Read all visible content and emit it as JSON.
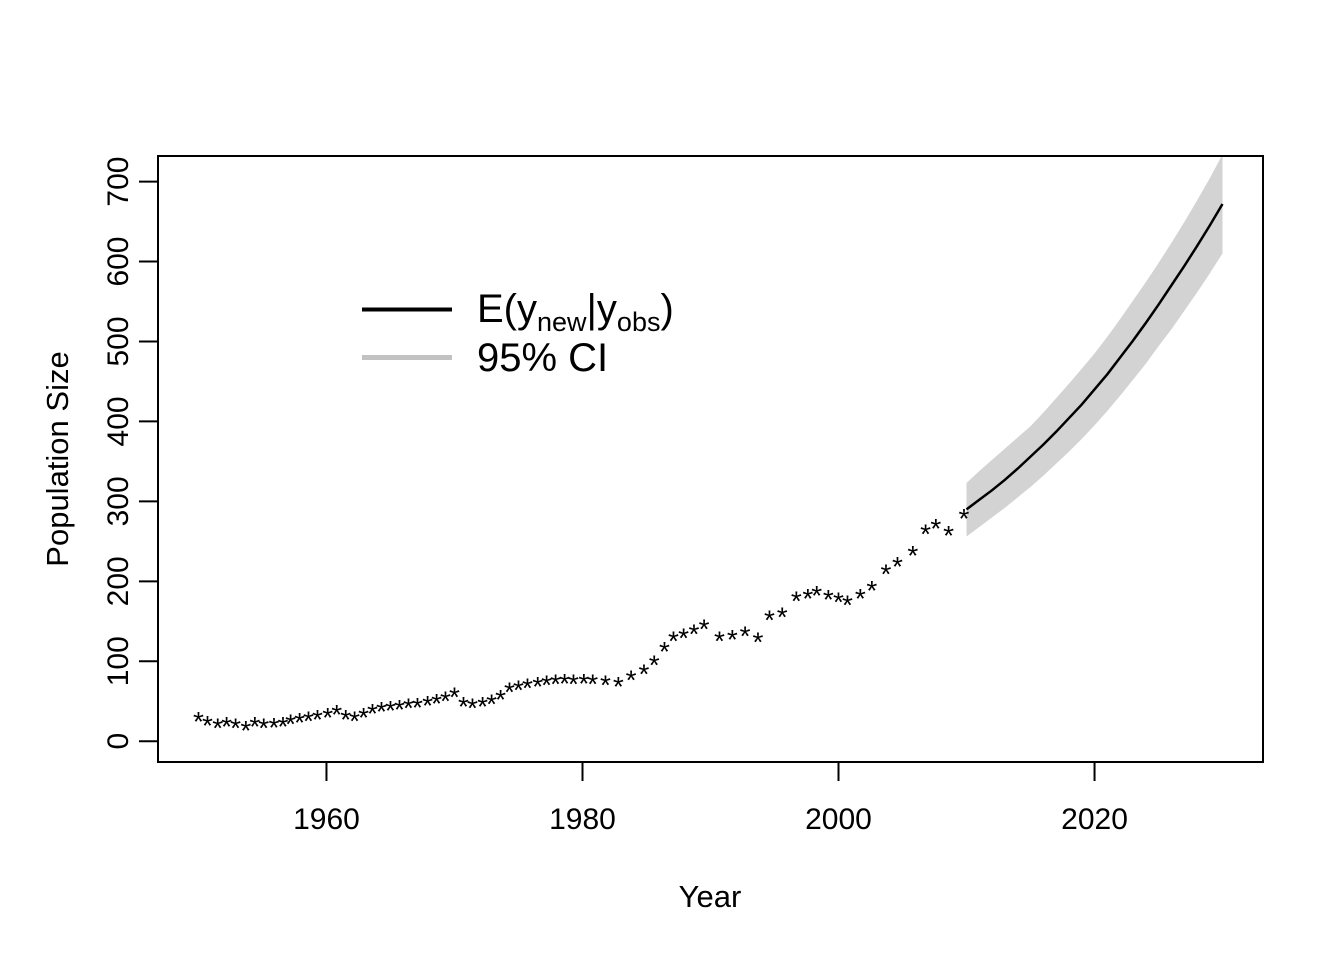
{
  "figure": {
    "background": "#ffffff",
    "border_color": "#000000"
  },
  "chart_data": {
    "type": "scatter",
    "title": "",
    "xlabel": "Year",
    "ylabel": "Population Size",
    "xlim": [
      1946.84,
      2033.16
    ],
    "ylim": [
      -26,
      732
    ],
    "x_ticks": [
      1960,
      1980,
      2000,
      2020
    ],
    "y_ticks": [
      0,
      100,
      200,
      300,
      400,
      500,
      600,
      700
    ],
    "y_tick_labels": [
      "0",
      "100",
      "200",
      "300",
      "400",
      "500",
      "600",
      "700"
    ],
    "grid": false,
    "marker": "*",
    "marker_color": "#000000",
    "observed_points": [
      [
        1950.0,
        30
      ],
      [
        1950.7,
        25
      ],
      [
        1951.5,
        22
      ],
      [
        1952.2,
        24
      ],
      [
        1952.9,
        22
      ],
      [
        1953.7,
        19
      ],
      [
        1954.4,
        24
      ],
      [
        1955.1,
        22
      ],
      [
        1955.9,
        23
      ],
      [
        1956.6,
        24
      ],
      [
        1957.2,
        27
      ],
      [
        1957.9,
        29
      ],
      [
        1958.6,
        31
      ],
      [
        1959.3,
        33
      ],
      [
        1960.1,
        35
      ],
      [
        1960.8,
        39
      ],
      [
        1961.5,
        33
      ],
      [
        1962.2,
        31
      ],
      [
        1962.9,
        35
      ],
      [
        1963.6,
        40
      ],
      [
        1964.3,
        43
      ],
      [
        1965.0,
        44
      ],
      [
        1965.7,
        45
      ],
      [
        1966.4,
        47
      ],
      [
        1967.1,
        48
      ],
      [
        1967.9,
        50
      ],
      [
        1968.6,
        53
      ],
      [
        1969.3,
        56
      ],
      [
        1970.0,
        61
      ],
      [
        1970.7,
        49
      ],
      [
        1971.4,
        47
      ],
      [
        1972.2,
        49
      ],
      [
        1972.9,
        52
      ],
      [
        1973.6,
        58
      ],
      [
        1974.3,
        67
      ],
      [
        1975.0,
        70
      ],
      [
        1975.7,
        72
      ],
      [
        1976.5,
        74
      ],
      [
        1977.2,
        76
      ],
      [
        1977.9,
        77
      ],
      [
        1978.6,
        78
      ],
      [
        1979.3,
        77
      ],
      [
        1980.1,
        78
      ],
      [
        1980.8,
        77
      ],
      [
        1981.8,
        76
      ],
      [
        1982.8,
        74
      ],
      [
        1983.8,
        82
      ],
      [
        1984.8,
        90
      ],
      [
        1985.6,
        101
      ],
      [
        1986.4,
        118
      ],
      [
        1987.1,
        131
      ],
      [
        1987.9,
        135
      ],
      [
        1988.7,
        140
      ],
      [
        1989.5,
        146
      ],
      [
        1990.7,
        131
      ],
      [
        1991.7,
        133
      ],
      [
        1992.7,
        137
      ],
      [
        1993.7,
        130
      ],
      [
        1994.6,
        157
      ],
      [
        1995.6,
        161
      ],
      [
        1996.7,
        181
      ],
      [
        1997.6,
        184
      ],
      [
        1998.3,
        188
      ],
      [
        1999.2,
        183
      ],
      [
        2000.0,
        180
      ],
      [
        2000.7,
        176
      ],
      [
        2001.7,
        184
      ],
      [
        2002.6,
        194
      ],
      [
        2003.7,
        215
      ],
      [
        2004.6,
        224
      ],
      [
        2005.8,
        238
      ],
      [
        2006.8,
        265
      ],
      [
        2007.6,
        272
      ],
      [
        2008.6,
        263
      ],
      [
        2009.8,
        284
      ]
    ],
    "forecast_mean": {
      "name": "E(y_new|y_obs)",
      "color": "#000000",
      "points": [
        [
          2010,
          290
        ],
        [
          2011,
          302
        ],
        [
          2012,
          314
        ],
        [
          2013,
          327
        ],
        [
          2014,
          341
        ],
        [
          2015,
          356
        ],
        [
          2016,
          371
        ],
        [
          2017,
          387
        ],
        [
          2018,
          404
        ],
        [
          2019,
          421
        ],
        [
          2020,
          440
        ],
        [
          2021,
          459
        ],
        [
          2022,
          480
        ],
        [
          2023,
          501
        ],
        [
          2024,
          523
        ],
        [
          2025,
          546
        ],
        [
          2026,
          570
        ],
        [
          2027,
          594
        ],
        [
          2028,
          619
        ],
        [
          2029,
          645
        ],
        [
          2030,
          672
        ]
      ]
    },
    "ci_95": {
      "name": "95% CI",
      "color": "#d3d3d3",
      "points_year_lower_upper": [
        [
          2010,
          256,
          323
        ],
        [
          2011,
          268,
          338
        ],
        [
          2012,
          280,
          352
        ],
        [
          2013,
          292,
          366
        ],
        [
          2014,
          305,
          380
        ],
        [
          2015,
          318,
          394
        ],
        [
          2016,
          332,
          411
        ],
        [
          2017,
          347,
          429
        ],
        [
          2018,
          362,
          447
        ],
        [
          2019,
          378,
          466
        ],
        [
          2020,
          395,
          485
        ],
        [
          2021,
          413,
          506
        ],
        [
          2022,
          432,
          528
        ],
        [
          2023,
          452,
          551
        ],
        [
          2024,
          472,
          574
        ],
        [
          2025,
          494,
          598
        ],
        [
          2026,
          515,
          623
        ],
        [
          2027,
          538,
          649
        ],
        [
          2028,
          561,
          676
        ],
        [
          2029,
          585,
          704
        ],
        [
          2030,
          610,
          734
        ]
      ]
    },
    "legend": {
      "position": "upper-left-inside",
      "entries": [
        {
          "label": "E(y_new|y_obs)",
          "parts": [
            {
              "t": "E(y",
              "sub": false
            },
            {
              "t": "new",
              "sub": true
            },
            {
              "t": "|y",
              "sub": false
            },
            {
              "t": "obs",
              "sub": true
            },
            {
              "t": ")",
              "sub": false
            }
          ],
          "line_color": "#000000"
        },
        {
          "label": "95% CI",
          "line_color": "#c2c2c2"
        }
      ]
    }
  }
}
